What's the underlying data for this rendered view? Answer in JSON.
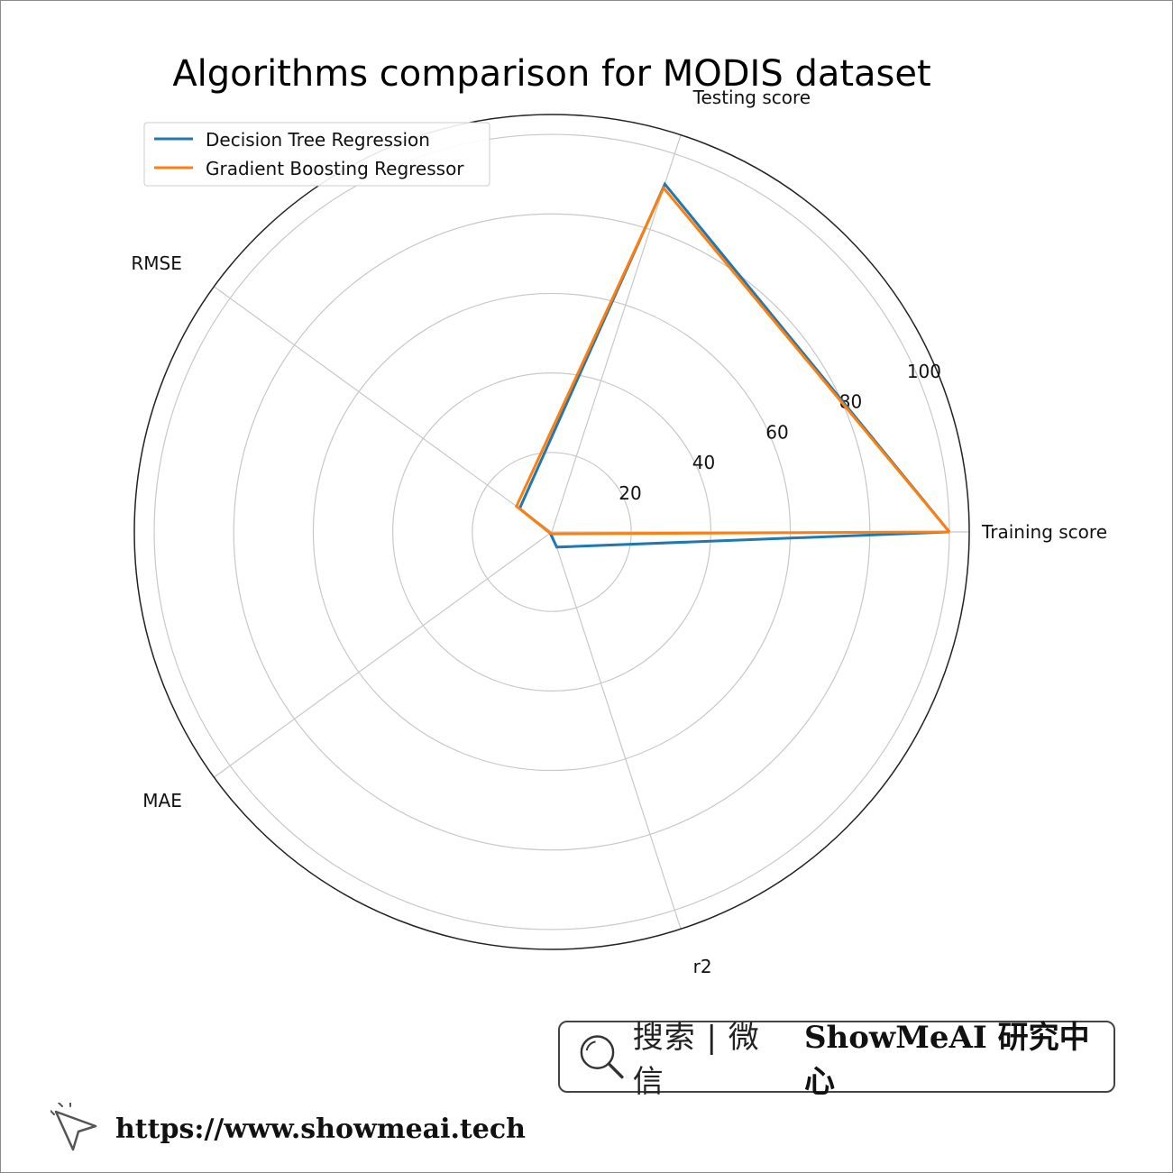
{
  "chart_data": {
    "type": "radar",
    "title": "Algorithms comparison for MODIS dataset",
    "categories": [
      "Training score",
      "Testing score",
      "RMSE",
      "MAE",
      "r2"
    ],
    "radial_ticks": [
      20,
      40,
      60,
      80,
      100
    ],
    "rlim": [
      0,
      105
    ],
    "grid": true,
    "legend_position": "top-left",
    "series": [
      {
        "name": "Decision Tree Regression",
        "color": "#1f77b4",
        "values": [
          100,
          92,
          10,
          0.5,
          4
        ]
      },
      {
        "name": "Gradient Boosting Regressor",
        "color": "#ff7f0e",
        "values": [
          100,
          91,
          11,
          0.5,
          0.5
        ]
      }
    ]
  },
  "footer": {
    "search_prefix": "搜索 | 微信",
    "search_brand": "ShowMeAI 研究中心",
    "site_url": "https://www.showmeai.tech"
  },
  "icons": {
    "search": "search-icon",
    "cursor": "cursor-icon"
  }
}
